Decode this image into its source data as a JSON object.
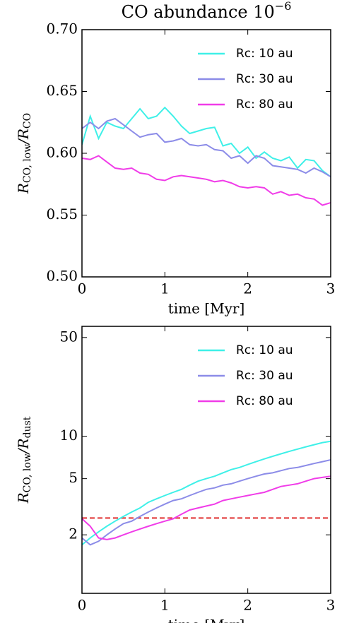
{
  "chart_data": [
    {
      "type": "line",
      "title": "CO abundance 10",
      "title_exponent": "−6",
      "xlabel": "time [Myr]",
      "ylabel": [
        {
          "text": "R"
        },
        {
          "text": "CO, low",
          "sub": true
        },
        {
          "text": "/R"
        },
        {
          "text": "CO",
          "sub": true
        }
      ],
      "x": [
        0,
        0.1,
        0.2,
        0.3,
        0.4,
        0.5,
        0.6,
        0.7,
        0.8,
        0.9,
        1.0,
        1.1,
        1.2,
        1.3,
        1.4,
        1.5,
        1.6,
        1.7,
        1.8,
        1.9,
        2.0,
        2.1,
        2.2,
        2.3,
        2.4,
        2.5,
        2.6,
        2.7,
        2.8,
        2.9,
        3.0
      ],
      "xlim": [
        0,
        3
      ],
      "xticks": [
        0,
        1,
        2,
        3
      ],
      "ylim": [
        0.5,
        0.7
      ],
      "yticks": [
        {
          "value": 0.5,
          "label": "0.50"
        },
        0.55,
        {
          "value": 0.6,
          "label": "0.60"
        },
        0.65,
        {
          "value": 0.7,
          "label": "0.70"
        }
      ],
      "legend": "upper right",
      "series": [
        {
          "name": "Rc: 10 au",
          "color": "#3ff0e8",
          "values": [
            0.607,
            0.63,
            0.612,
            0.625,
            0.622,
            0.62,
            0.628,
            0.636,
            0.628,
            0.63,
            0.637,
            0.63,
            0.622,
            0.616,
            0.618,
            0.62,
            0.621,
            0.606,
            0.608,
            0.6,
            0.605,
            0.596,
            0.601,
            0.596,
            0.594,
            0.597,
            0.588,
            0.595,
            0.594,
            0.586,
            0.581
          ]
        },
        {
          "name": "Rc: 30 au",
          "color": "#8c8ce8",
          "values": [
            0.62,
            0.625,
            0.62,
            0.626,
            0.628,
            0.623,
            0.618,
            0.613,
            0.615,
            0.616,
            0.609,
            0.61,
            0.612,
            0.607,
            0.606,
            0.607,
            0.603,
            0.602,
            0.596,
            0.598,
            0.592,
            0.598,
            0.596,
            0.59,
            0.589,
            0.588,
            0.587,
            0.584,
            0.588,
            0.585,
            0.581
          ]
        },
        {
          "name": "Rc: 80 au",
          "color": "#f03ce8",
          "values": [
            0.596,
            0.595,
            0.598,
            0.593,
            0.588,
            0.587,
            0.588,
            0.584,
            0.583,
            0.579,
            0.578,
            0.581,
            0.582,
            0.581,
            0.58,
            0.579,
            0.577,
            0.578,
            0.576,
            0.573,
            0.572,
            0.573,
            0.572,
            0.567,
            0.569,
            0.566,
            0.567,
            0.564,
            0.563,
            0.558,
            0.56
          ]
        }
      ]
    },
    {
      "type": "line",
      "xlabel": "time [Myr]",
      "ylabel": [
        {
          "text": "R"
        },
        {
          "text": "CO, low",
          "sub": true
        },
        {
          "text": "/R"
        },
        {
          "text": "dust",
          "sub": true
        }
      ],
      "x": [
        0,
        0.1,
        0.2,
        0.3,
        0.4,
        0.5,
        0.6,
        0.7,
        0.8,
        0.9,
        1.0,
        1.1,
        1.2,
        1.3,
        1.4,
        1.5,
        1.6,
        1.7,
        1.8,
        1.9,
        2.0,
        2.1,
        2.2,
        2.3,
        2.4,
        2.5,
        2.6,
        2.7,
        2.8,
        2.9,
        3.0
      ],
      "xlim": [
        0,
        3
      ],
      "xticks": [
        0,
        1,
        2,
        3
      ],
      "ylim": [
        0.77,
        60
      ],
      "yscale": "log",
      "yticks": [
        2,
        5,
        10,
        50
      ],
      "legend": "upper right",
      "hline": {
        "value": 2.63,
        "color": "#e03030",
        "style": "dashed"
      },
      "series": [
        {
          "name": "Rc: 10 au",
          "color": "#3ff0e8",
          "values": [
            1.7,
            1.9,
            2.1,
            2.3,
            2.5,
            2.7,
            2.9,
            3.1,
            3.4,
            3.6,
            3.8,
            4.0,
            4.2,
            4.5,
            4.8,
            5.0,
            5.2,
            5.5,
            5.8,
            6.0,
            6.3,
            6.6,
            6.9,
            7.2,
            7.5,
            7.8,
            8.1,
            8.4,
            8.7,
            9.0,
            9.2
          ]
        },
        {
          "name": "Rc: 30 au",
          "color": "#8c8ce8",
          "values": [
            1.9,
            1.7,
            1.8,
            2.0,
            2.2,
            2.4,
            2.5,
            2.7,
            2.9,
            3.1,
            3.3,
            3.5,
            3.6,
            3.8,
            4.0,
            4.2,
            4.3,
            4.5,
            4.6,
            4.8,
            5.0,
            5.2,
            5.4,
            5.5,
            5.7,
            5.9,
            6.0,
            6.2,
            6.4,
            6.6,
            6.8
          ]
        },
        {
          "name": "Rc: 80 au",
          "color": "#f03ce8",
          "values": [
            2.6,
            2.3,
            1.9,
            1.85,
            1.9,
            2.0,
            2.1,
            2.2,
            2.3,
            2.4,
            2.5,
            2.6,
            2.8,
            3.0,
            3.1,
            3.2,
            3.3,
            3.5,
            3.6,
            3.7,
            3.8,
            3.9,
            4.0,
            4.2,
            4.4,
            4.5,
            4.6,
            4.8,
            5.0,
            5.1,
            5.2
          ]
        }
      ]
    }
  ]
}
